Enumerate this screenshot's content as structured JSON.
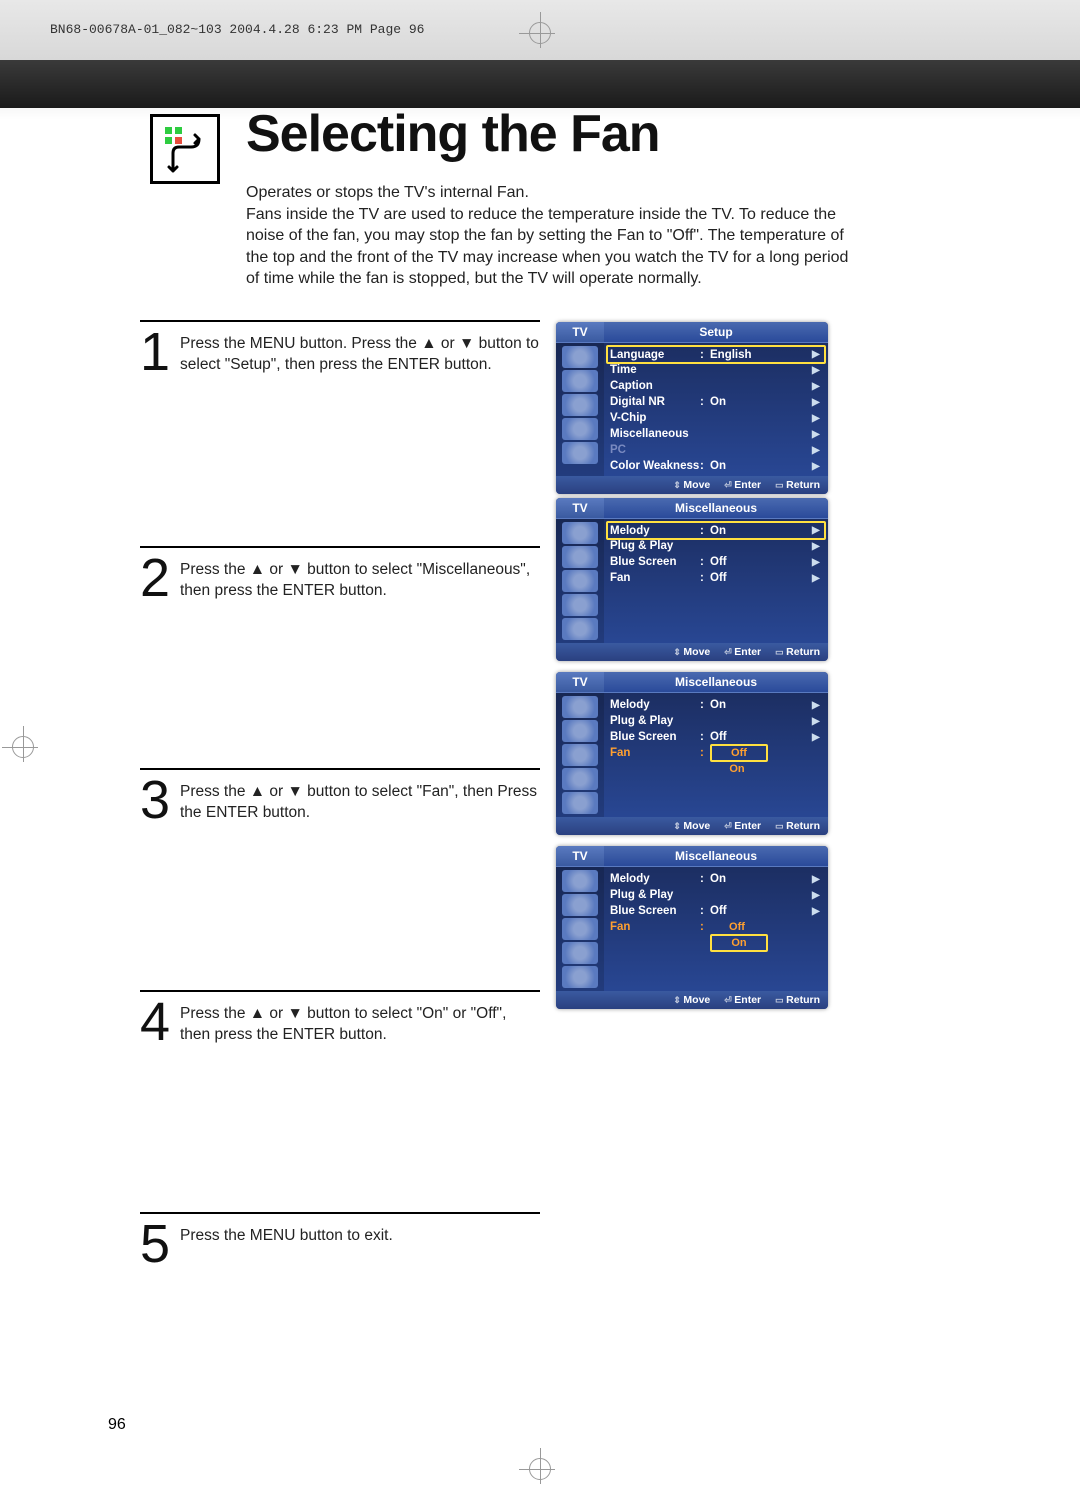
{
  "print_header": "BN68-00678A-01_082~103  2004.4.28  6:23 PM  Page 96",
  "title": "Selecting the Fan",
  "subtitle": "Operates or stops the TV's internal Fan.\nFans inside the TV are used to reduce the temperature inside the TV. To reduce the noise of the fan, you may stop the fan by setting the Fan to \"Off\". The temperature of the top and the front of the TV may increase when you watch the TV for a long period of time while the fan is stopped, but the TV will operate normally.",
  "steps": {
    "s1": {
      "num": "1",
      "text": "Press the MENU button. Press the ▲ or ▼ button to select \"Setup\", then press the ENTER button."
    },
    "s2": {
      "num": "2",
      "text": "Press the ▲ or ▼ button to select \"Miscellaneous\", then press the ENTER button."
    },
    "s3": {
      "num": "3",
      "text": "Press the ▲ or ▼ button to select \"Fan\", then Press the ENTER button."
    },
    "s4": {
      "num": "4",
      "text": "Press the ▲ or ▼ button to select \"On\" or \"Off\", then press the ENTER button."
    },
    "s5": {
      "num": "5",
      "text": "Press the MENU button to exit."
    }
  },
  "osd_labels": {
    "tv": "TV",
    "setup": "Setup",
    "misc": "Miscellaneous",
    "move": "Move",
    "enter": "Enter",
    "return": "Return"
  },
  "osd1": {
    "rows": [
      {
        "lbl": "Language",
        "val": "English",
        "hl": true
      },
      {
        "lbl": "Time",
        "val": ""
      },
      {
        "lbl": "Caption",
        "val": ""
      },
      {
        "lbl": "Digital NR",
        "val": "On"
      },
      {
        "lbl": "V-Chip",
        "val": ""
      },
      {
        "lbl": "Miscellaneous",
        "val": ""
      },
      {
        "lbl": "PC",
        "val": "",
        "dim": true
      },
      {
        "lbl": "Color Weakness",
        "val": "On"
      }
    ]
  },
  "osd2": {
    "rows": [
      {
        "lbl": "Melody",
        "val": "On",
        "hl": true
      },
      {
        "lbl": "Plug & Play",
        "val": ""
      },
      {
        "lbl": "Blue Screen",
        "val": "Off"
      },
      {
        "lbl": "Fan",
        "val": "Off"
      }
    ]
  },
  "osd3": {
    "rows": [
      {
        "lbl": "Melody",
        "val": "On"
      },
      {
        "lbl": "Plug & Play",
        "val": ""
      },
      {
        "lbl": "Blue Screen",
        "val": "Off"
      }
    ],
    "fan_lbl": "Fan",
    "opt_sel": "Off",
    "opt_other": "On"
  },
  "osd4": {
    "rows": [
      {
        "lbl": "Melody",
        "val": "On"
      },
      {
        "lbl": "Plug & Play",
        "val": ""
      },
      {
        "lbl": "Blue Screen",
        "val": "Off"
      }
    ],
    "fan_lbl": "Fan",
    "opt_other": "Off",
    "opt_sel": "On"
  },
  "page_number": "96"
}
